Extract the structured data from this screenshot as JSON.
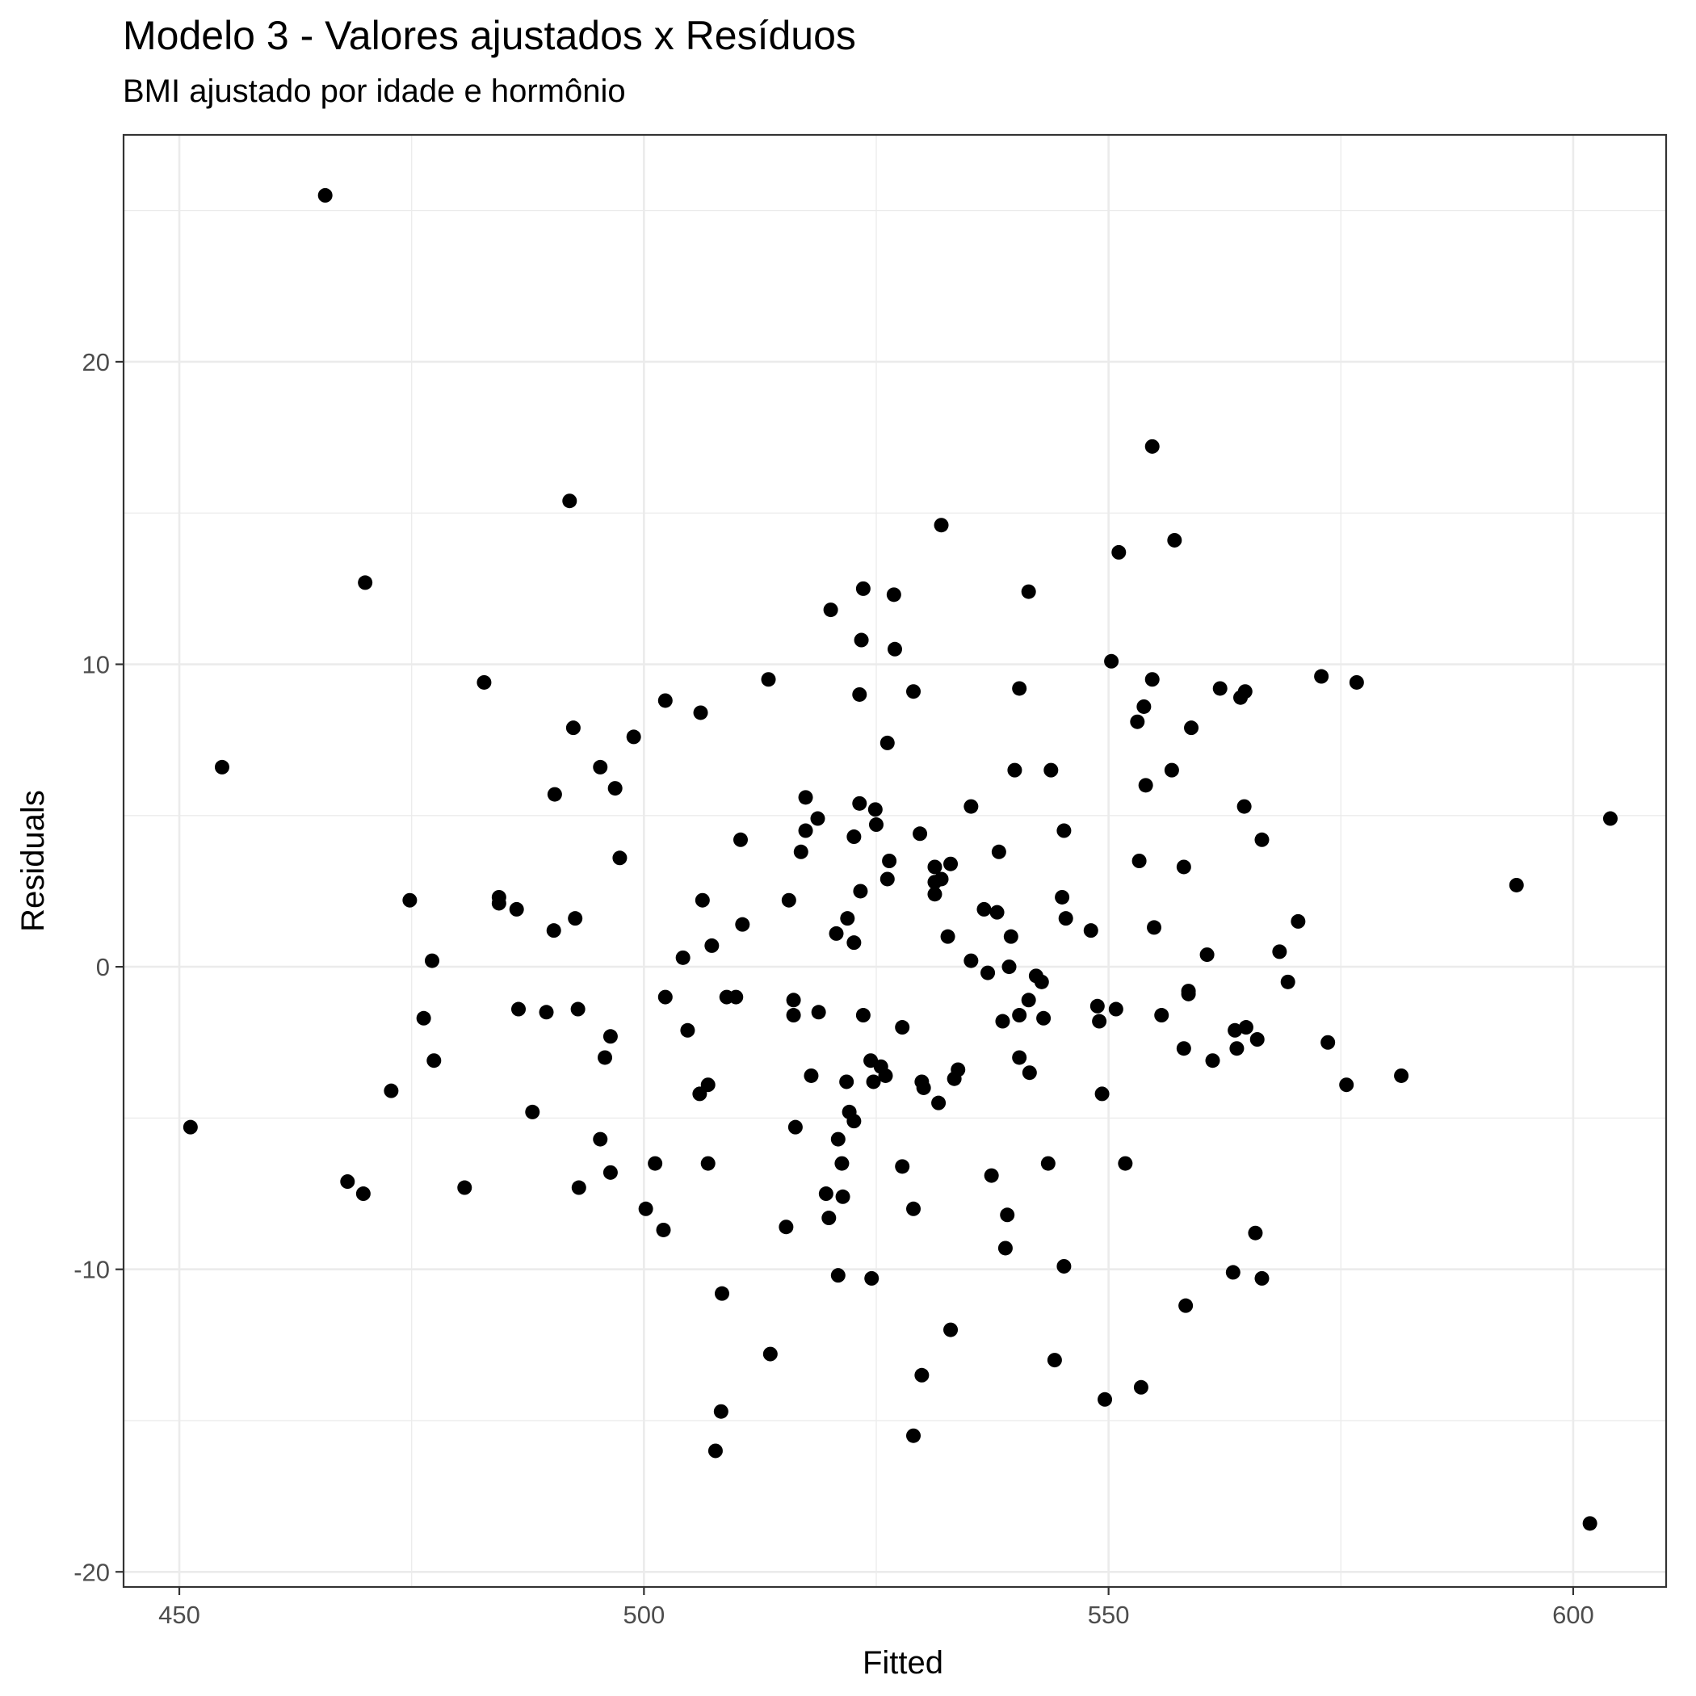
{
  "chart_data": {
    "type": "scatter",
    "title": "Modelo 3 - Valores ajustados x Resíduos",
    "subtitle": "BMI ajustado por idade e hormônio",
    "xlabel": "Fitted",
    "ylabel": "Residuals",
    "xlim": [
      444,
      610
    ],
    "ylim": [
      -20.5,
      27.5
    ],
    "x_ticks": [
      450,
      500,
      550,
      600
    ],
    "y_ticks": [
      -20,
      -10,
      0,
      10,
      20
    ],
    "x_tick_labels": [
      "450",
      "500",
      "550",
      "600"
    ],
    "y_tick_labels": [
      "-20",
      "-10",
      "0",
      "10",
      "20"
    ],
    "grid": true,
    "theme": "black-and-white",
    "point_color": "#000000",
    "points": [
      [
        465.7,
        25.5
      ],
      [
        454.6,
        6.6
      ],
      [
        451.2,
        -5.3
      ],
      [
        468.1,
        -7.1
      ],
      [
        470.0,
        12.7
      ],
      [
        469.8,
        -7.5
      ],
      [
        472.8,
        -4.1
      ],
      [
        474.8,
        2.2
      ],
      [
        476.3,
        -1.7
      ],
      [
        477.2,
        0.2
      ],
      [
        477.4,
        -3.1
      ],
      [
        480.7,
        -7.3
      ],
      [
        482.8,
        9.4
      ],
      [
        484.4,
        2.3
      ],
      [
        484.4,
        2.1
      ],
      [
        486.3,
        1.9
      ],
      [
        486.5,
        -1.4
      ],
      [
        488.0,
        -4.8
      ],
      [
        489.5,
        -1.5
      ],
      [
        490.4,
        5.7
      ],
      [
        490.3,
        1.2
      ],
      [
        492.0,
        15.4
      ],
      [
        492.4,
        7.9
      ],
      [
        492.6,
        1.6
      ],
      [
        492.9,
        -1.4
      ],
      [
        493.0,
        -7.3
      ],
      [
        495.3,
        6.6
      ],
      [
        495.3,
        -5.7
      ],
      [
        495.8,
        -3.0
      ],
      [
        496.4,
        -2.3
      ],
      [
        496.4,
        -6.8
      ],
      [
        496.9,
        5.9
      ],
      [
        497.4,
        3.6
      ],
      [
        498.9,
        7.6
      ],
      [
        500.2,
        -8.0
      ],
      [
        501.2,
        -6.5
      ],
      [
        502.1,
        -8.7
      ],
      [
        502.3,
        8.8
      ],
      [
        502.3,
        -1.0
      ],
      [
        504.2,
        0.3
      ],
      [
        504.7,
        -2.1
      ],
      [
        506.0,
        -4.2
      ],
      [
        506.1,
        8.4
      ],
      [
        506.3,
        2.2
      ],
      [
        506.9,
        -3.9
      ],
      [
        506.9,
        -6.5
      ],
      [
        507.3,
        0.7
      ],
      [
        507.7,
        -16.0
      ],
      [
        508.3,
        -14.7
      ],
      [
        508.4,
        -10.8
      ],
      [
        508.9,
        -1.0
      ],
      [
        509.9,
        -1.0
      ],
      [
        510.4,
        4.2
      ],
      [
        510.6,
        1.4
      ],
      [
        513.4,
        9.5
      ],
      [
        513.6,
        -12.8
      ],
      [
        515.3,
        -8.6
      ],
      [
        515.6,
        2.2
      ],
      [
        516.1,
        -1.1
      ],
      [
        516.1,
        -1.6
      ],
      [
        516.3,
        -5.3
      ],
      [
        516.9,
        3.8
      ],
      [
        517.4,
        5.6
      ],
      [
        517.4,
        4.5
      ],
      [
        518.0,
        -3.6
      ],
      [
        518.7,
        4.9
      ],
      [
        518.8,
        -1.5
      ],
      [
        519.6,
        -7.5
      ],
      [
        519.9,
        -8.3
      ],
      [
        520.1,
        11.8
      ],
      [
        520.7,
        1.1
      ],
      [
        520.9,
        -10.2
      ],
      [
        520.9,
        -5.7
      ],
      [
        521.3,
        -6.5
      ],
      [
        521.4,
        -7.6
      ],
      [
        521.8,
        -3.8
      ],
      [
        521.9,
        1.6
      ],
      [
        522.1,
        -4.8
      ],
      [
        522.6,
        0.8
      ],
      [
        522.6,
        4.3
      ],
      [
        522.6,
        -5.1
      ],
      [
        523.2,
        5.4
      ],
      [
        523.3,
        2.5
      ],
      [
        523.2,
        9.0
      ],
      [
        523.4,
        10.8
      ],
      [
        523.6,
        12.5
      ],
      [
        523.6,
        -1.6
      ],
      [
        524.4,
        -3.1
      ],
      [
        524.5,
        -10.3
      ],
      [
        524.7,
        -3.8
      ],
      [
        524.9,
        5.2
      ],
      [
        525.0,
        4.7
      ],
      [
        525.5,
        -3.3
      ],
      [
        526.0,
        -3.6
      ],
      [
        526.2,
        7.4
      ],
      [
        526.2,
        2.9
      ],
      [
        526.4,
        3.5
      ],
      [
        526.9,
        12.3
      ],
      [
        527.0,
        10.5
      ],
      [
        527.8,
        -2.0
      ],
      [
        527.8,
        -6.6
      ],
      [
        529.0,
        9.1
      ],
      [
        529.0,
        -15.5
      ],
      [
        529.0,
        -8.0
      ],
      [
        529.7,
        4.4
      ],
      [
        529.9,
        -3.8
      ],
      [
        529.9,
        -13.5
      ],
      [
        530.1,
        -4.0
      ],
      [
        531.3,
        3.3
      ],
      [
        531.3,
        2.8
      ],
      [
        531.3,
        2.4
      ],
      [
        531.7,
        -4.5
      ],
      [
        532.0,
        14.6
      ],
      [
        532.0,
        2.9
      ],
      [
        532.7,
        1.0
      ],
      [
        533.0,
        -12.0
      ],
      [
        533.0,
        3.4
      ],
      [
        533.4,
        -3.7
      ],
      [
        533.8,
        -3.4
      ],
      [
        535.2,
        5.3
      ],
      [
        535.2,
        0.2
      ],
      [
        536.6,
        1.9
      ],
      [
        537.0,
        -0.2
      ],
      [
        537.4,
        -6.9
      ],
      [
        538.0,
        1.8
      ],
      [
        538.2,
        3.8
      ],
      [
        538.6,
        -1.8
      ],
      [
        538.9,
        -9.3
      ],
      [
        539.1,
        -8.2
      ],
      [
        539.3,
        0.0
      ],
      [
        539.5,
        1.0
      ],
      [
        539.9,
        6.5
      ],
      [
        540.4,
        9.2
      ],
      [
        540.4,
        -1.6
      ],
      [
        540.4,
        -3.0
      ],
      [
        541.4,
        12.4
      ],
      [
        541.4,
        -1.1
      ],
      [
        541.5,
        -3.5
      ],
      [
        542.2,
        -0.3
      ],
      [
        542.8,
        -0.5
      ],
      [
        543.0,
        -1.7
      ],
      [
        543.5,
        -6.5
      ],
      [
        543.8,
        6.5
      ],
      [
        544.2,
        -13.0
      ],
      [
        545.0,
        2.3
      ],
      [
        545.2,
        4.5
      ],
      [
        545.2,
        -9.9
      ],
      [
        545.4,
        1.6
      ],
      [
        548.1,
        1.2
      ],
      [
        548.8,
        -1.3
      ],
      [
        549.0,
        -1.8
      ],
      [
        549.3,
        -4.2
      ],
      [
        549.6,
        -14.3
      ],
      [
        550.3,
        10.1
      ],
      [
        550.8,
        -1.4
      ],
      [
        551.1,
        13.7
      ],
      [
        551.8,
        -6.5
      ],
      [
        553.1,
        8.1
      ],
      [
        553.3,
        3.5
      ],
      [
        553.5,
        -13.9
      ],
      [
        553.8,
        8.6
      ],
      [
        554.0,
        6.0
      ],
      [
        554.7,
        17.2
      ],
      [
        554.7,
        9.5
      ],
      [
        554.9,
        1.3
      ],
      [
        555.7,
        -1.6
      ],
      [
        556.8,
        6.5
      ],
      [
        557.1,
        14.1
      ],
      [
        558.1,
        3.3
      ],
      [
        558.1,
        -2.7
      ],
      [
        558.3,
        -11.2
      ],
      [
        558.6,
        -0.8
      ],
      [
        558.6,
        -0.9
      ],
      [
        558.9,
        7.9
      ],
      [
        560.6,
        0.4
      ],
      [
        561.2,
        -3.1
      ],
      [
        562.0,
        9.2
      ],
      [
        563.4,
        -10.1
      ],
      [
        563.6,
        -2.1
      ],
      [
        563.8,
        -2.7
      ],
      [
        564.2,
        8.9
      ],
      [
        564.6,
        5.3
      ],
      [
        564.7,
        9.1
      ],
      [
        564.8,
        -2.0
      ],
      [
        565.8,
        -8.8
      ],
      [
        566.0,
        -2.4
      ],
      [
        566.5,
        -10.3
      ],
      [
        566.5,
        4.2
      ],
      [
        568.4,
        0.5
      ],
      [
        569.3,
        -0.5
      ],
      [
        570.4,
        1.5
      ],
      [
        572.9,
        9.6
      ],
      [
        573.6,
        -2.5
      ],
      [
        575.6,
        -3.9
      ],
      [
        576.7,
        9.4
      ],
      [
        581.5,
        -3.6
      ],
      [
        593.9,
        2.7
      ],
      [
        601.8,
        -18.4
      ],
      [
        604.0,
        4.9
      ]
    ]
  }
}
